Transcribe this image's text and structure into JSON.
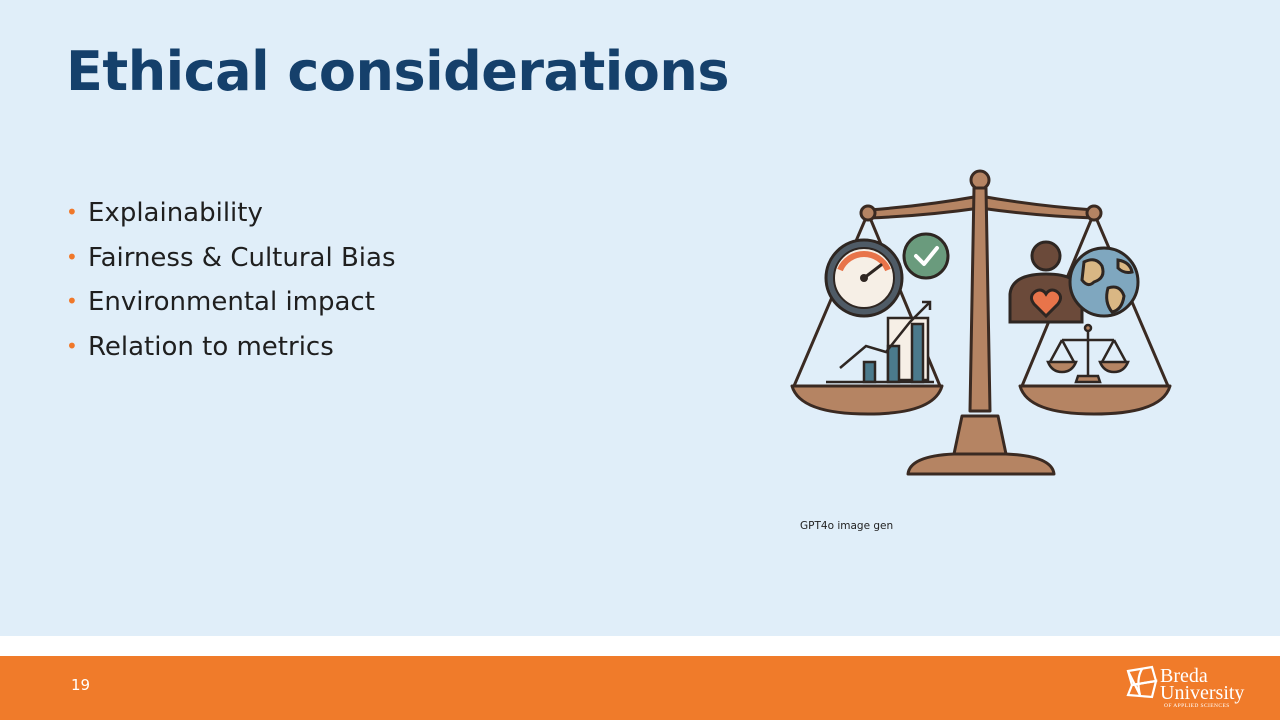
{
  "slide": {
    "title": "Ethical considerations",
    "bullets": [
      "Explainability",
      "Fairness & Cultural Bias",
      "Environmental impact",
      "Relation to metrics"
    ],
    "image_caption": "GPT4o image gen",
    "page_number": "19"
  },
  "footer": {
    "logo_line1": "Breda",
    "logo_line2": "University",
    "logo_line3": "OF APPLIED SCIENCES"
  },
  "colors": {
    "slide_background": "#e0eef9",
    "title": "#15406b",
    "accent_orange": "#f07b2a",
    "bullet_text": "#1f1f1f"
  },
  "icons": [
    "balance-scale-icon",
    "gauge-icon",
    "checkmark-icon",
    "bar-chart-icon",
    "person-heart-icon",
    "globe-icon",
    "small-scale-icon"
  ]
}
